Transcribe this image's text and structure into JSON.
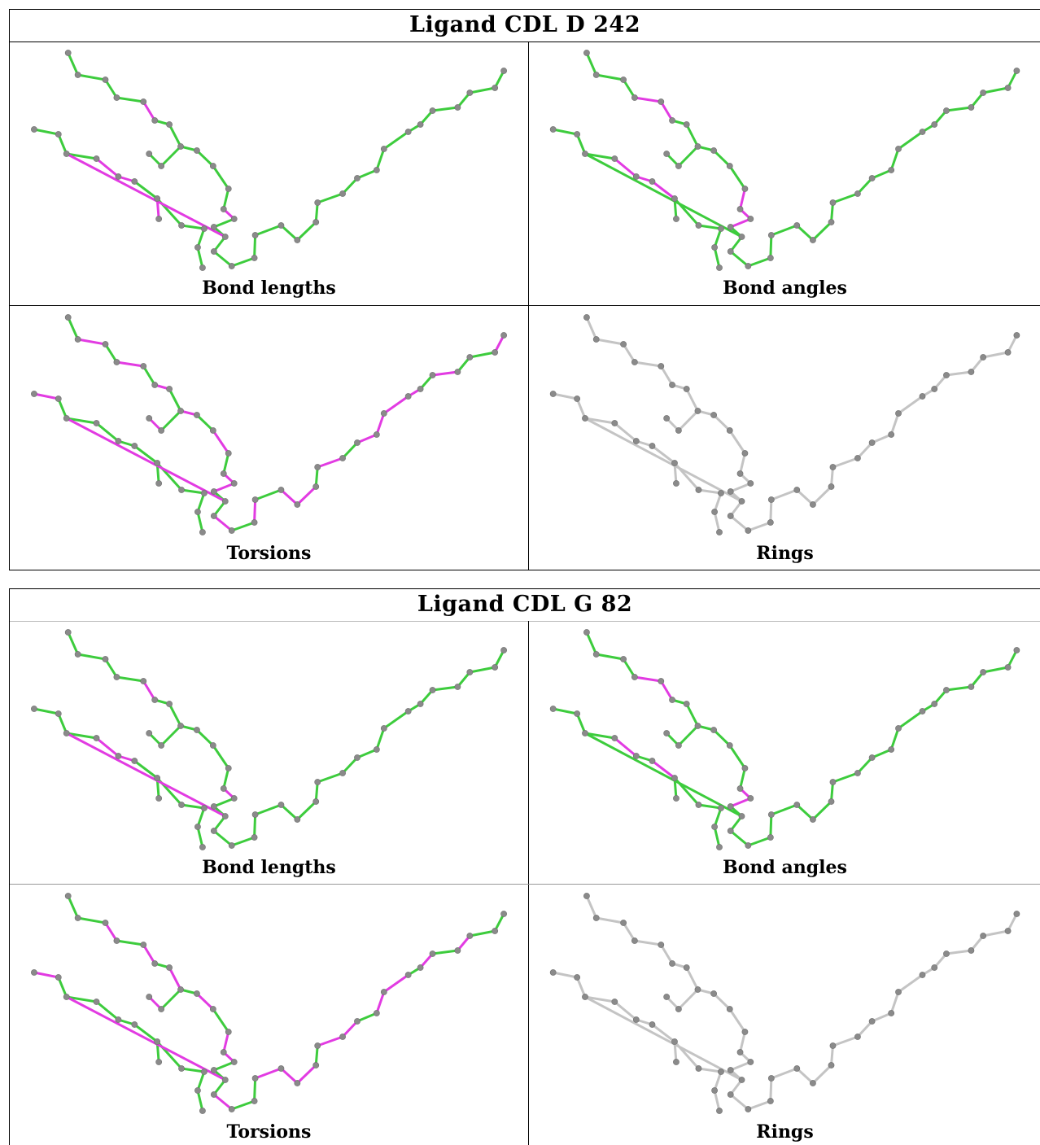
{
  "colors": {
    "good": "#3dcc3d",
    "outlier": "#e23be2",
    "neutral": "#c4c4c4",
    "atom": "#8a8a8a"
  },
  "ligands": [
    {
      "title": "Ligand CDL D 242",
      "panels": [
        {
          "caption": "Bond lengths",
          "outliers": [
            [
              11,
              12
            ],
            [
              4,
              5
            ],
            [
              39,
              40
            ],
            [
              40,
              41
            ],
            [
              42,
              43
            ],
            [
              43,
              44
            ],
            [
              42,
              46
            ],
            [
              14,
              38
            ]
          ]
        },
        {
          "caption": "Bond angles",
          "outliers": [
            [
              3,
              4
            ],
            [
              4,
              5
            ],
            [
              10,
              11
            ],
            [
              11,
              12
            ],
            [
              12,
              13
            ],
            [
              39,
              40
            ],
            [
              40,
              41
            ],
            [
              41,
              42
            ],
            [
              42,
              45
            ],
            [
              42,
              46
            ]
          ]
        },
        {
          "caption": "Torsions",
          "outliers": [
            [
              1,
              2
            ],
            [
              3,
              4
            ],
            [
              5,
              6
            ],
            [
              7,
              8
            ],
            [
              9,
              10
            ],
            [
              11,
              12
            ],
            [
              12,
              13
            ],
            [
              14,
              38
            ],
            [
              22,
              23
            ],
            [
              24,
              25
            ],
            [
              25,
              26
            ],
            [
              26,
              27
            ],
            [
              17,
              18
            ],
            [
              19,
              20
            ],
            [
              20,
              21
            ],
            [
              29,
              30
            ],
            [
              32,
              33
            ],
            [
              34,
              35
            ],
            [
              36,
              37
            ],
            [
              27,
              28
            ],
            [
              15,
              16
            ]
          ]
        },
        {
          "caption": "Rings",
          "outliers": []
        }
      ]
    },
    {
      "title": "Ligand CDL G 82",
      "panels": [
        {
          "caption": "Bond lengths",
          "outliers": [
            [
              11,
              12
            ],
            [
              4,
              5
            ],
            [
              39,
              40
            ],
            [
              40,
              41
            ],
            [
              42,
              46
            ],
            [
              14,
              38
            ]
          ]
        },
        {
          "caption": "Bond angles",
          "outliers": [
            [
              3,
              4
            ],
            [
              4,
              5
            ],
            [
              11,
              12
            ],
            [
              12,
              13
            ],
            [
              39,
              40
            ],
            [
              41,
              42
            ],
            [
              42,
              45
            ],
            [
              42,
              46
            ]
          ]
        },
        {
          "caption": "Torsions",
          "outliers": [
            [
              2,
              3
            ],
            [
              4,
              5
            ],
            [
              6,
              7
            ],
            [
              8,
              9
            ],
            [
              10,
              11
            ],
            [
              11,
              12
            ],
            [
              14,
              38
            ],
            [
              22,
              23
            ],
            [
              23,
              24
            ],
            [
              25,
              26
            ],
            [
              26,
              27
            ],
            [
              18,
              19
            ],
            [
              19,
              20
            ],
            [
              20,
              21
            ],
            [
              30,
              31
            ],
            [
              33,
              34
            ],
            [
              34,
              35
            ],
            [
              36,
              37
            ],
            [
              28,
              29
            ],
            [
              15,
              16
            ]
          ]
        },
        {
          "caption": "Rings",
          "outliers": []
        }
      ]
    }
  ]
}
